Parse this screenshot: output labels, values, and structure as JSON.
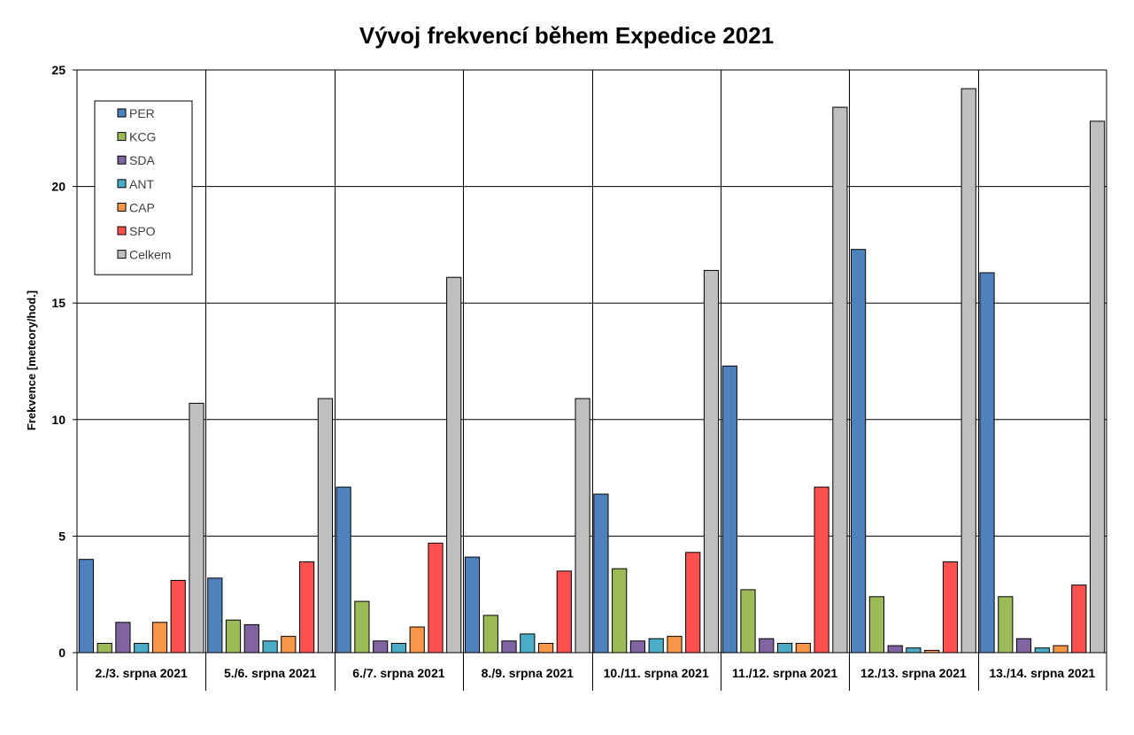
{
  "chart_data": {
    "type": "bar",
    "title": "Vývoj frekvencí během Expedice 2021",
    "xlabel": "",
    "ylabel": "Frekvence [meteory/hod.]",
    "ylim": [
      0,
      25
    ],
    "yticks": [
      0,
      5,
      10,
      15,
      20,
      25
    ],
    "grid": true,
    "legend_position": "top-left",
    "categories": [
      "2./3. srpna 2021",
      "5./6. srpna 2021",
      "6./7. srpna 2021",
      "8./9. srpna 2021",
      "10./11. srpna 2021",
      "11./12. srpna 2021",
      "12./13. srpna 2021",
      "13./14. srpna 2021"
    ],
    "series": [
      {
        "name": "PER",
        "color": "#4f81bd",
        "values": [
          4.0,
          3.2,
          7.1,
          4.1,
          6.8,
          12.3,
          17.3,
          16.3
        ]
      },
      {
        "name": "KCG",
        "color": "#9bbb59",
        "values": [
          0.4,
          1.4,
          2.2,
          1.6,
          3.6,
          2.7,
          2.4,
          2.4
        ]
      },
      {
        "name": "SDA",
        "color": "#8064a2",
        "values": [
          1.3,
          1.2,
          0.5,
          0.5,
          0.5,
          0.6,
          0.3,
          0.6
        ]
      },
      {
        "name": "ANT",
        "color": "#4bacc6",
        "values": [
          0.4,
          0.5,
          0.4,
          0.8,
          0.6,
          0.4,
          0.2,
          0.2
        ]
      },
      {
        "name": "CAP",
        "color": "#f79646",
        "values": [
          1.3,
          0.7,
          1.1,
          0.4,
          0.7,
          0.4,
          0.1,
          0.3
        ]
      },
      {
        "name": "SPO",
        "color": "#ff5050",
        "values": [
          3.1,
          3.9,
          4.7,
          3.5,
          4.3,
          7.1,
          3.9,
          2.9
        ]
      },
      {
        "name": "Celkem",
        "color": "#bfbfbf",
        "values": [
          10.7,
          10.9,
          16.1,
          10.9,
          16.4,
          23.4,
          24.2,
          22.8
        ]
      }
    ]
  }
}
